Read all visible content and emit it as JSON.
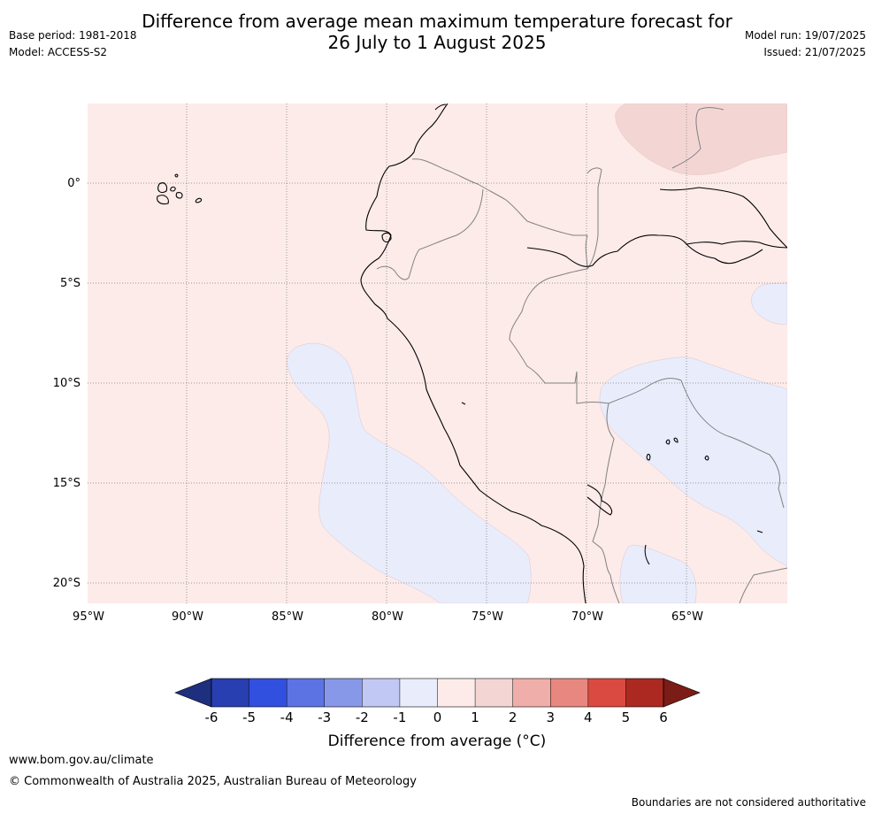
{
  "header": {
    "title_line1": "Difference from average mean maximum temperature forecast for",
    "title_line2": "26 July to 1 August 2025",
    "base_period": "Base period: 1981-2018",
    "model": "Model: ACCESS-S2",
    "model_run": "Model run: 19/07/2025",
    "issued": "Issued: 21/07/2025"
  },
  "map": {
    "lon_ticks": [
      "95°W",
      "90°W",
      "85°W",
      "80°W",
      "75°W",
      "70°W",
      "65°W"
    ],
    "lat_ticks": [
      "0°",
      "5°S",
      "10°S",
      "15°S",
      "20°S"
    ],
    "colors": {
      "background_anomaly": "#fcebe9",
      "cool_anomaly": "#e9ecfb",
      "warm_anomaly": "#f3d6d4",
      "coastline": "#000000",
      "borders": "#808080",
      "gridlines": "#7f7f7f"
    }
  },
  "colorbar": {
    "label": "Difference from average (°C)",
    "ticks": [
      "-6",
      "-5",
      "-4",
      "-3",
      "-2",
      "-1",
      "0",
      "1",
      "2",
      "3",
      "4",
      "5",
      "6"
    ],
    "colors": [
      "#1e2f7f",
      "#273fb0",
      "#3250df",
      "#5c73e4",
      "#8898e9",
      "#c1c8f3",
      "#e9ecfb",
      "#fcebe9",
      "#f3d6d4",
      "#efaea9",
      "#e8877f",
      "#db4a40",
      "#ac2922",
      "#7b1c17"
    ]
  },
  "footer": {
    "url": "www.bom.gov.au/climate",
    "copyright": "© Commonwealth of Australia 2025, Australian Bureau of Meteorology",
    "disclaimer": "Boundaries are not considered authoritative"
  }
}
